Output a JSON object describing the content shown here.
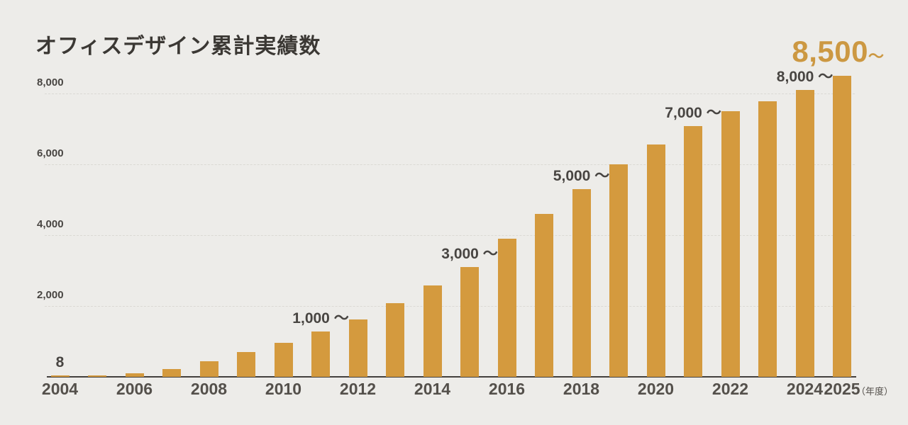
{
  "title": "オフィスデザイン累計実績数",
  "headline": {
    "value": "8,500",
    "tilde": "～"
  },
  "unit_suffix": "（年度）",
  "colors": {
    "background": "#EDECE9",
    "bar": "#D49A3E",
    "headline_accent": "#CC9842",
    "title_text": "#3B3834",
    "label_text": "#484542",
    "tick_text": "#54504B",
    "gridline": "#DBD9D4",
    "axis_line": "#43403C"
  },
  "chart_data": {
    "type": "bar",
    "title": "オフィスデザイン累計実績数",
    "x": [
      "2004",
      "2005",
      "2006",
      "2007",
      "2008",
      "2009",
      "2010",
      "2011",
      "2012",
      "2013",
      "2014",
      "2015",
      "2016",
      "2017",
      "2018",
      "2019",
      "2020",
      "2021",
      "2022",
      "2023",
      "2024",
      "2025"
    ],
    "values": [
      8,
      30,
      100,
      230,
      450,
      700,
      970,
      1280,
      1630,
      2080,
      2590,
      3100,
      3900,
      4600,
      5300,
      6000,
      6570,
      7080,
      7500,
      7780,
      8110,
      8500
    ],
    "xlabel": "年度",
    "ylabel": "",
    "ylim": [
      0,
      8600
    ],
    "grid": "horizontal-dashed",
    "legend": "none",
    "y_ticks": [
      {
        "value": 8000,
        "label": "8,000"
      },
      {
        "value": 6000,
        "label": "6,000"
      },
      {
        "value": 4000,
        "label": "4,000"
      },
      {
        "value": 2000,
        "label": "2,000"
      }
    ],
    "x_ticks": [
      "2004",
      "2006",
      "2008",
      "2010",
      "2012",
      "2014",
      "2016",
      "2018",
      "2020",
      "2022",
      "2024",
      "2025"
    ],
    "annotations": [
      {
        "x": "2004",
        "label": "8"
      },
      {
        "x": "2011",
        "label": "1,000 ～"
      },
      {
        "x": "2015",
        "label": "3,000 ～"
      },
      {
        "x": "2018",
        "label": "5,000 ～"
      },
      {
        "x": "2021",
        "label": "7,000 ～"
      },
      {
        "x": "2024",
        "label": "8,000 ～"
      },
      {
        "x": "2025",
        "label": "8,500～",
        "style": "headline"
      }
    ]
  }
}
